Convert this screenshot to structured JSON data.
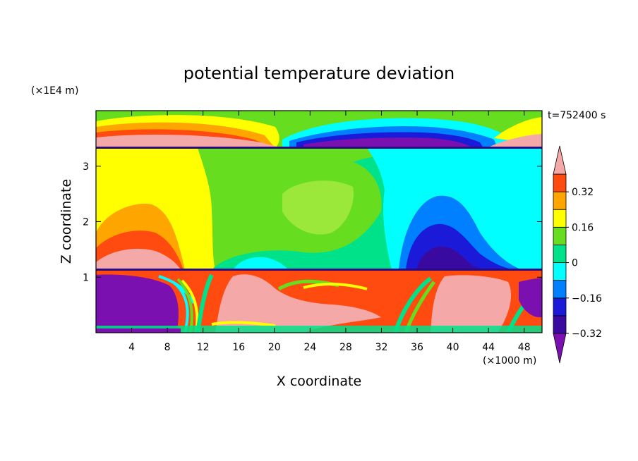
{
  "chart_data": {
    "type": "heatmap",
    "title": "potential temperature deviation",
    "xlabel": "X coordinate",
    "ylabel": "Z coordinate",
    "x_unit": "(×1000 m)",
    "y_unit": "(×1E4 m)",
    "time_label": "t=752400 s",
    "xlim": [
      0,
      50
    ],
    "ylim": [
      0,
      4
    ],
    "x_ticks": [
      4,
      8,
      12,
      16,
      20,
      24,
      28,
      32,
      36,
      40,
      44,
      48
    ],
    "y_ticks": [
      1,
      2,
      3
    ],
    "colorbar": {
      "levels": [
        -0.4,
        -0.32,
        -0.24,
        -0.16,
        -0.08,
        0,
        0.08,
        0.16,
        0.24,
        0.32,
        0.4
      ],
      "labels": [
        "0.32",
        "0.16",
        "0",
        "−0.16",
        "−0.32"
      ],
      "label_values": [
        0.32,
        0.16,
        0,
        -0.16,
        -0.32
      ],
      "colors": [
        "#7a10b0",
        "#3a0aa0",
        "#1a1ad8",
        "#0080ff",
        "#00ffff",
        "#00e28a",
        "#66dd1e",
        "#ffff00",
        "#ffa500",
        "#ff4a10",
        "#f5a8a8"
      ]
    },
    "notes": "Layered field: positive anomalies (pink) near z≈3.4 and in the lower layer around x 14–28 and 36–44 km; negative (purple) lower left and upper right; blue core near x≈38 km, z≈1.5."
  }
}
